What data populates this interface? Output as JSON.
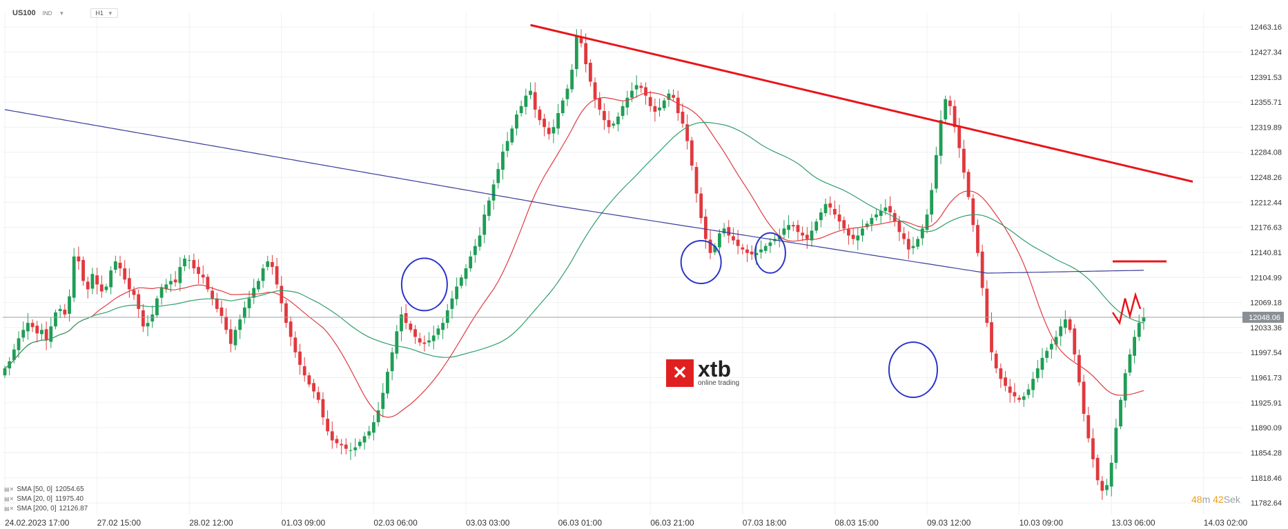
{
  "header": {
    "symbol": "US100",
    "type": "IND",
    "timeframe": "H1"
  },
  "branding": {
    "logo_mark": "✕",
    "logo_word": "xtb",
    "logo_sub": "online trading"
  },
  "legend": [
    {
      "label": "SMA [50, 0]",
      "value": "12054.65",
      "color": "#2e9e6a"
    },
    {
      "label": "SMA [20, 0]",
      "value": "11975.40",
      "color": "#e0393e"
    },
    {
      "label": "SMA [200, 0]",
      "value": "12126.87",
      "color": "#3b3e9a"
    }
  ],
  "timer": {
    "minutes": "48",
    "m_label": "m",
    "seconds": "42",
    "s_label": "Sek"
  },
  "chart_data": {
    "type": "candlestick",
    "title": "",
    "ylim": [
      11766,
      12484
    ],
    "y_ticks": [
      "12463.16",
      "12427.34",
      "12391.53",
      "12355.71",
      "12319.89",
      "12284.08",
      "12248.26",
      "12212.44",
      "12176.63",
      "12140.81",
      "12104.99",
      "12069.18",
      "12033.36",
      "11997.54",
      "11961.73",
      "11925.91",
      "11890.09",
      "11854.28",
      "11818.46",
      "11782.64"
    ],
    "x_ticks": [
      {
        "label": "24.02.2023  17:00",
        "i": 0
      },
      {
        "label": "27.02  15:00",
        "i": 20
      },
      {
        "label": "28.02  12:00",
        "i": 40
      },
      {
        "label": "01.03  09:00",
        "i": 60
      },
      {
        "label": "02.03  06:00",
        "i": 80
      },
      {
        "label": "03.03  03:00",
        "i": 100
      },
      {
        "label": "06.03  01:00",
        "i": 120
      },
      {
        "label": "06.03  21:00",
        "i": 140
      },
      {
        "label": "07.03  18:00",
        "i": 160
      },
      {
        "label": "08.03  15:00",
        "i": 180
      },
      {
        "label": "09.03  12:00",
        "i": 200
      },
      {
        "label": "10.03  09:00",
        "i": 220
      },
      {
        "label": "13.03  06:00",
        "i": 240
      },
      {
        "label": "14.03  02:00",
        "i": 260
      }
    ],
    "current_price": "12048.06",
    "close": [
      11975,
      11985,
      12002,
      12018,
      12030,
      12040,
      12034,
      12025,
      12030,
      12015,
      12035,
      12055,
      12060,
      12052,
      12078,
      12135,
      12128,
      12100,
      12088,
      12110,
      12095,
      12085,
      12092,
      12115,
      12128,
      12118,
      12102,
      12088,
      12080,
      12060,
      12035,
      12040,
      12052,
      12075,
      12090,
      12095,
      12100,
      12098,
      12120,
      12132,
      12130,
      12118,
      12110,
      12105,
      12088,
      12075,
      12060,
      12050,
      12030,
      12010,
      12030,
      12045,
      12062,
      12075,
      12090,
      12100,
      12118,
      12128,
      12120,
      12095,
      12068,
      12040,
      12020,
      11998,
      11980,
      11965,
      11952,
      11942,
      11930,
      11905,
      11885,
      11872,
      11868,
      11865,
      11860,
      11858,
      11862,
      11870,
      11878,
      11885,
      11898,
      11915,
      11940,
      11970,
      11998,
      12028,
      12052,
      12040,
      12030,
      12020,
      12012,
      12010,
      12015,
      12022,
      12032,
      12040,
      12058,
      12075,
      12092,
      12105,
      12118,
      12135,
      12150,
      12165,
      12195,
      12215,
      12238,
      12260,
      12285,
      12300,
      12318,
      12338,
      12350,
      12365,
      12372,
      12345,
      12330,
      12320,
      12310,
      12320,
      12340,
      12358,
      12375,
      12402,
      12450,
      12440,
      12410,
      12385,
      12360,
      12345,
      12330,
      12320,
      12325,
      12335,
      12350,
      12362,
      12372,
      12380,
      12376,
      12365,
      12350,
      12342,
      12348,
      12358,
      12368,
      12362,
      12340,
      12325,
      12300,
      12265,
      12225,
      12190,
      12160,
      12140,
      12150,
      12168,
      12175,
      12165,
      12158,
      12150,
      12145,
      12140,
      12138,
      12140,
      12145,
      12150,
      12155,
      12160,
      12165,
      12175,
      12180,
      12178,
      12170,
      12165,
      12160,
      12172,
      12185,
      12198,
      12210,
      12205,
      12195,
      12185,
      12175,
      12165,
      12160,
      12165,
      12175,
      12182,
      12190,
      12195,
      12200,
      12205,
      12198,
      12185,
      12170,
      12160,
      12145,
      12150,
      12160,
      12175,
      12195,
      12230,
      12280,
      12330,
      12360,
      12350,
      12320,
      12290,
      12255,
      12220,
      12180,
      12140,
      12090,
      12040,
      11998,
      11975,
      11960,
      11950,
      11940,
      11935,
      11930,
      11935,
      11945,
      11960,
      11975,
      11990,
      12000,
      12010,
      12020,
      12035,
      12045,
      12030,
      11995,
      11955,
      11910,
      11875,
      11845,
      11815,
      11800,
      11808,
      11840,
      11890,
      11930,
      11968,
      11995,
      12020,
      12040,
      12048
    ]
  }
}
